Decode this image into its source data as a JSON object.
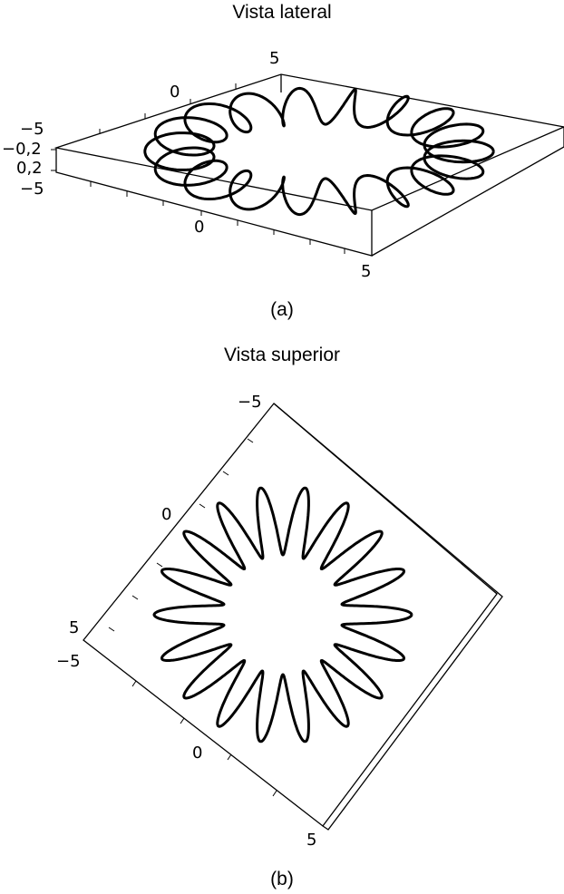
{
  "panel_a": {
    "title": "Vista lateral",
    "caption": "(a)",
    "tick_labels": {
      "back_x_low": "0",
      "back_x_high": "5",
      "left_neg5_top": "−5",
      "z_neg": "−0,2",
      "z_pos": "0,2",
      "left_neg5_bottom": "−5",
      "front_zero": "0",
      "front_five": "5"
    }
  },
  "panel_b": {
    "title": "Vista superior",
    "caption": "(b)",
    "tick_labels": {
      "top_neg5": "−5",
      "left_zero": "0",
      "left_five": "5",
      "left_neg5": "−5",
      "bottom_zero": "0",
      "bottom_five": "5"
    }
  },
  "curve": {
    "description_type": "parametric",
    "petals": 18,
    "stroke": "#000000"
  }
}
